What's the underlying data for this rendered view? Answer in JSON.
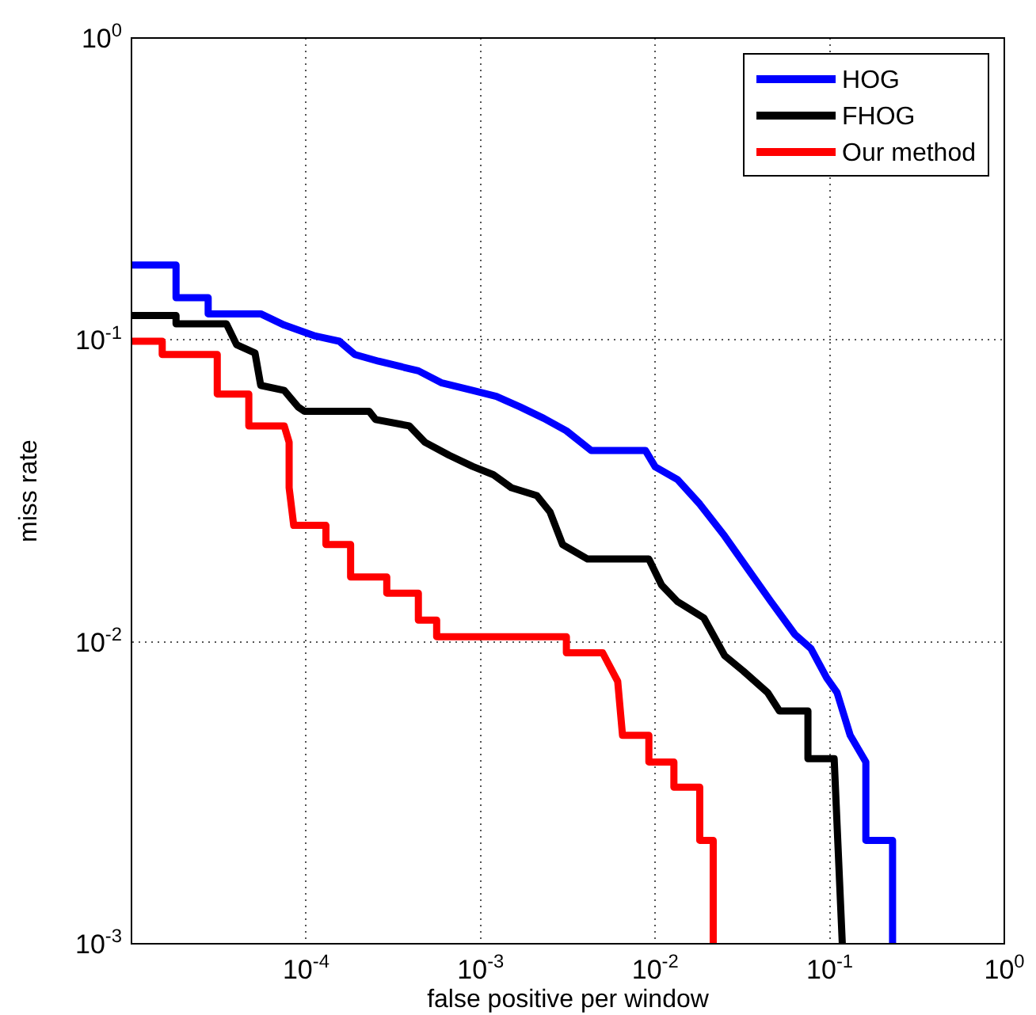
{
  "chart_data": {
    "type": "line",
    "xlabel": "false positive per window",
    "ylabel": "miss rate",
    "log": "xy",
    "grid": true,
    "legend": "top right",
    "marker": "none",
    "line_style": "solid",
    "xlim": [
      1e-05,
      1
    ],
    "ylim": [
      0.001,
      1
    ],
    "xticks": [
      {
        "value": 1e-05,
        "label": null
      },
      {
        "value": 0.0001,
        "label": "10$^{-4}$"
      },
      {
        "value": 0.001,
        "label": "10$^{-3}$"
      },
      {
        "value": 0.01,
        "label": "10$^{-2}$"
      },
      {
        "value": 0.1,
        "label": "10$^{-1}$"
      },
      {
        "value": 1,
        "label": "10$^{0}$"
      }
    ],
    "yticks": [
      {
        "value": 0.001,
        "label": "10$^{-3}$"
      },
      {
        "value": 0.01,
        "label": "10$^{-2}$"
      },
      {
        "value": 0.1,
        "label": "10$^{-1}$"
      },
      {
        "value": 1,
        "label": "10$^{0}$"
      }
    ],
    "series": [
      {
        "name": "HOG",
        "color": "#0000ff",
        "x": [
          1e-05,
          1.8e-05,
          1.8e-05,
          2.75e-05,
          2.75e-05,
          5.5e-05,
          7.5e-05,
          0.000113,
          0.000155,
          0.00019,
          0.00026,
          0.00044,
          0.0006,
          0.0009,
          0.00123,
          0.00168,
          0.0023,
          0.0031,
          0.0043,
          0.0088,
          0.01,
          0.0134,
          0.018,
          0.025,
          0.034,
          0.046,
          0.063,
          0.078,
          0.096,
          0.11,
          0.131,
          0.161,
          0.161,
          0.229,
          0.229
        ],
        "values": [
          0.177,
          0.177,
          0.138,
          0.138,
          0.122,
          0.122,
          0.112,
          0.103,
          0.099,
          0.0895,
          0.085,
          0.079,
          0.072,
          0.068,
          0.065,
          0.06,
          0.055,
          0.05,
          0.043,
          0.043,
          0.038,
          0.0345,
          0.0286,
          0.0224,
          0.0174,
          0.0136,
          0.0106,
          0.0095,
          0.0076,
          0.0068,
          0.0049,
          0.004,
          0.0022,
          0.0022,
          0.001
        ]
      },
      {
        "name": "FHOG",
        "color": "#000000",
        "x": [
          1e-05,
          1.8e-05,
          1.8e-05,
          3.5e-05,
          4e-05,
          5.1e-05,
          5.5e-05,
          7.5e-05,
          9e-05,
          9.8e-05,
          0.00023,
          0.00025,
          0.00039,
          0.00048,
          0.00066,
          0.0009,
          0.00118,
          0.0015,
          0.0021,
          0.0025,
          0.00295,
          0.0041,
          0.0092,
          0.0109,
          0.0134,
          0.019,
          0.025,
          0.032,
          0.044,
          0.0515,
          0.075,
          0.075,
          0.106,
          0.118
        ],
        "values": [
          0.1205,
          0.1205,
          0.113,
          0.113,
          0.0964,
          0.0905,
          0.0707,
          0.068,
          0.06,
          0.058,
          0.058,
          0.0545,
          0.0519,
          0.0458,
          0.0415,
          0.0381,
          0.0358,
          0.0324,
          0.0305,
          0.0269,
          0.021,
          0.0188,
          0.0188,
          0.0154,
          0.0136,
          0.012,
          0.009,
          0.008,
          0.0068,
          0.0059,
          0.0059,
          0.0041,
          0.0041,
          0.001
        ]
      },
      {
        "name": "Our method",
        "color": "#ff0000",
        "x": [
          1e-05,
          1.5e-05,
          1.5e-05,
          3.1e-05,
          3.1e-05,
          4.7e-05,
          4.7e-05,
          7.5e-05,
          8e-05,
          8e-05,
          8.5e-05,
          0.00013,
          0.00013,
          0.00018,
          0.00018,
          0.00029,
          0.00029,
          0.00044,
          0.00044,
          0.00056,
          0.00056,
          0.0031,
          0.0031,
          0.005,
          0.0061,
          0.0065,
          0.0092,
          0.0092,
          0.0128,
          0.0128,
          0.018,
          0.018,
          0.0215,
          0.0215
        ],
        "values": [
          0.099,
          0.099,
          0.0895,
          0.0895,
          0.0662,
          0.0662,
          0.0519,
          0.0519,
          0.0458,
          0.0324,
          0.0243,
          0.0243,
          0.021,
          0.021,
          0.0164,
          0.0164,
          0.0145,
          0.0145,
          0.0118,
          0.0118,
          0.0104,
          0.0104,
          0.0092,
          0.0092,
          0.0074,
          0.0049,
          0.0049,
          0.004,
          0.004,
          0.0033,
          0.0033,
          0.0022,
          0.0022,
          0.001
        ]
      }
    ]
  }
}
